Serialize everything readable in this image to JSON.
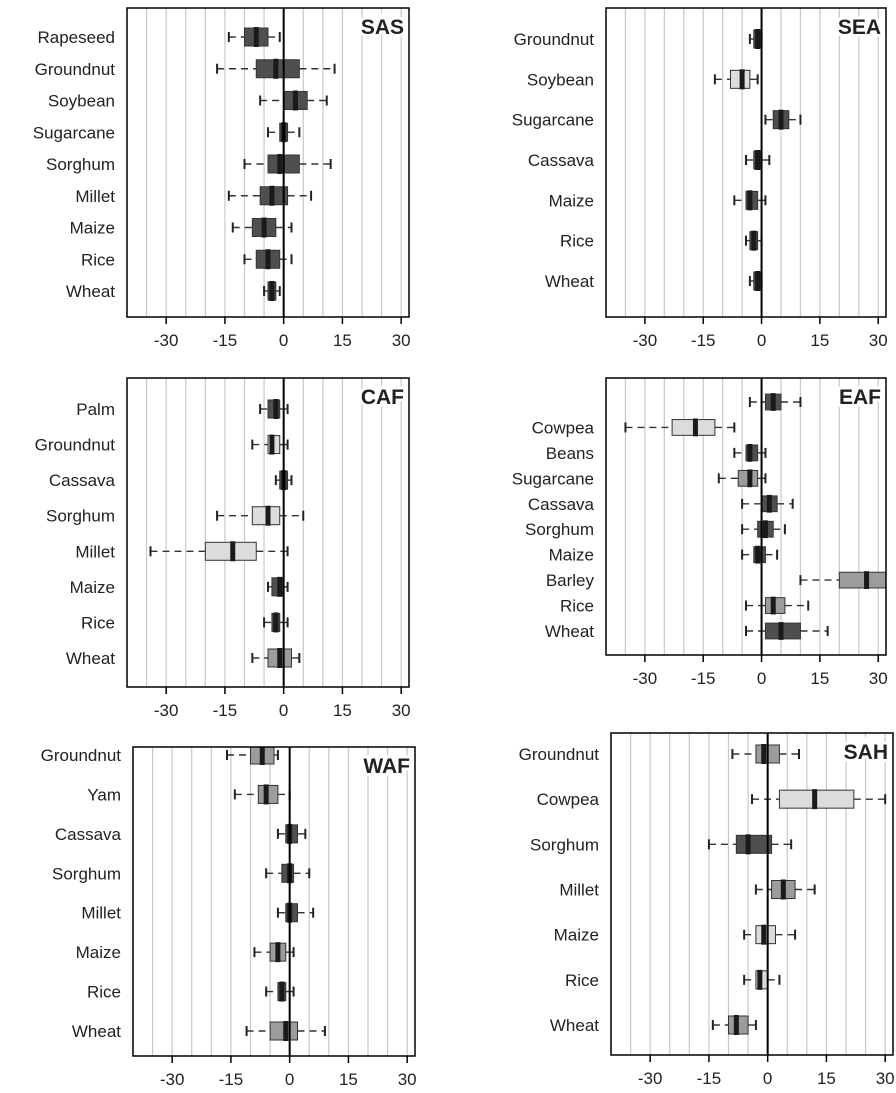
{
  "chart_data": [
    {
      "type": "boxplot",
      "region": "SAS",
      "xlim": [
        -40,
        32
      ],
      "x_ticks": [
        -30,
        -15,
        0,
        15,
        30
      ],
      "grid": "vertical",
      "title": "SAS",
      "crops": [
        {
          "name": "Rapeseed",
          "q1": -10,
          "median": -7,
          "q3": -4,
          "whisker_low": -14,
          "whisker_high": -1,
          "shade": "dark"
        },
        {
          "name": "Groundnut",
          "q1": -7,
          "median": -2,
          "q3": 4,
          "whisker_low": -17,
          "whisker_high": 13,
          "shade": "dark"
        },
        {
          "name": "Soybean",
          "q1": 0,
          "median": 3,
          "q3": 6,
          "whisker_low": -6,
          "whisker_high": 11,
          "shade": "dark"
        },
        {
          "name": "Sugarcane",
          "q1": -1,
          "median": 0,
          "q3": 1,
          "whisker_low": -4,
          "whisker_high": 4,
          "shade": "dark"
        },
        {
          "name": "Sorghum",
          "q1": -4,
          "median": -1,
          "q3": 4,
          "whisker_low": -10,
          "whisker_high": 12,
          "shade": "dark"
        },
        {
          "name": "Millet",
          "q1": -6,
          "median": -3,
          "q3": 1,
          "whisker_low": -14,
          "whisker_high": 7,
          "shade": "dark"
        },
        {
          "name": "Maize",
          "q1": -8,
          "median": -5,
          "q3": -2,
          "whisker_low": -13,
          "whisker_high": 2,
          "shade": "dark"
        },
        {
          "name": "Rice",
          "q1": -7,
          "median": -4,
          "q3": -1,
          "whisker_low": -10,
          "whisker_high": 2,
          "shade": "dark"
        },
        {
          "name": "Wheat",
          "q1": -4,
          "median": -3,
          "q3": -2,
          "whisker_low": -5,
          "whisker_high": -1,
          "shade": "dark"
        }
      ]
    },
    {
      "type": "boxplot",
      "region": "SEA",
      "xlim": [
        -40,
        32
      ],
      "x_ticks": [
        -30,
        -15,
        0,
        15,
        30
      ],
      "grid": "vertical",
      "title": "SEA",
      "crops": [
        {
          "name": "Groundnut",
          "q1": -2,
          "median": -1,
          "q3": 0,
          "whisker_low": -3,
          "whisker_high": 0,
          "shade": "dark"
        },
        {
          "name": "Soybean",
          "q1": -8,
          "median": -5,
          "q3": -3,
          "whisker_low": -12,
          "whisker_high": -1,
          "shade": "light"
        },
        {
          "name": "Sugarcane",
          "q1": 3,
          "median": 5,
          "q3": 7,
          "whisker_low": 1,
          "whisker_high": 10,
          "shade": "dark"
        },
        {
          "name": "Cassava",
          "q1": -2,
          "median": -1,
          "q3": 0,
          "whisker_low": -4,
          "whisker_high": 2,
          "shade": "dark"
        },
        {
          "name": "Maize",
          "q1": -4,
          "median": -3,
          "q3": -1,
          "whisker_low": -7,
          "whisker_high": 1,
          "shade": "dark"
        },
        {
          "name": "Rice",
          "q1": -3,
          "median": -2,
          "q3": -1,
          "whisker_low": -4,
          "whisker_high": 0,
          "shade": "dark"
        },
        {
          "name": "Wheat",
          "q1": -2,
          "median": -1,
          "q3": 0,
          "whisker_low": -3,
          "whisker_high": 0,
          "shade": "dark"
        }
      ]
    },
    {
      "type": "boxplot",
      "region": "CAF",
      "xlim": [
        -40,
        32
      ],
      "x_ticks": [
        -30,
        -15,
        0,
        15,
        30
      ],
      "grid": "vertical",
      "title": "CAF",
      "crops": [
        {
          "name": "Palm",
          "q1": -4,
          "median": -2,
          "q3": -1,
          "whisker_low": -6,
          "whisker_high": 1,
          "shade": "dark"
        },
        {
          "name": "Groundnut",
          "q1": -4,
          "median": -3,
          "q3": -1,
          "whisker_low": -8,
          "whisker_high": 1,
          "shade": "light"
        },
        {
          "name": "Cassava",
          "q1": -1,
          "median": 0,
          "q3": 1,
          "whisker_low": -2,
          "whisker_high": 2,
          "shade": "dark"
        },
        {
          "name": "Sorghum",
          "q1": -8,
          "median": -4,
          "q3": -1,
          "whisker_low": -17,
          "whisker_high": 5,
          "shade": "light"
        },
        {
          "name": "Millet",
          "q1": -20,
          "median": -13,
          "q3": -7,
          "whisker_low": -34,
          "whisker_high": 1,
          "shade": "light"
        },
        {
          "name": "Maize",
          "q1": -3,
          "median": -1,
          "q3": 0,
          "whisker_low": -4,
          "whisker_high": 1,
          "shade": "dark"
        },
        {
          "name": "Rice",
          "q1": -3,
          "median": -2,
          "q3": -1,
          "whisker_low": -5,
          "whisker_high": 1,
          "shade": "dark"
        },
        {
          "name": "Wheat",
          "q1": -4,
          "median": -1,
          "q3": 2,
          "whisker_low": -8,
          "whisker_high": 4,
          "shade": "medium"
        }
      ]
    },
    {
      "type": "boxplot",
      "region": "EAF",
      "xlim": [
        -40,
        32
      ],
      "x_ticks": [
        -30,
        -15,
        0,
        15,
        30
      ],
      "grid": "vertical",
      "title": "EAF",
      "crops": [
        {
          "name": "",
          "q1": 1,
          "median": 3,
          "q3": 5,
          "whisker_low": -3,
          "whisker_high": 10,
          "shade": "dark"
        },
        {
          "name": "Cowpea",
          "q1": -23,
          "median": -17,
          "q3": -12,
          "whisker_low": -35,
          "whisker_high": -7,
          "shade": "light"
        },
        {
          "name": "Beans",
          "q1": -4,
          "median": -3,
          "q3": -1,
          "whisker_low": -7,
          "whisker_high": 1,
          "shade": "dark"
        },
        {
          "name": "Sugarcane",
          "q1": -6,
          "median": -3,
          "q3": -1,
          "whisker_low": -11,
          "whisker_high": 1,
          "shade": "medium"
        },
        {
          "name": "Cassava",
          "q1": 0,
          "median": 2,
          "q3": 4,
          "whisker_low": -5,
          "whisker_high": 8,
          "shade": "dark"
        },
        {
          "name": "Sorghum",
          "q1": -1,
          "median": 1,
          "q3": 3,
          "whisker_low": -5,
          "whisker_high": 6,
          "shade": "dark"
        },
        {
          "name": "Maize",
          "q1": -2,
          "median": -1,
          "q3": 1,
          "whisker_low": -5,
          "whisker_high": 4,
          "shade": "dark"
        },
        {
          "name": "Barley",
          "q1": 20,
          "median": 27,
          "q3": 32,
          "whisker_low": 10,
          "whisker_high": 32,
          "shade": "medium"
        },
        {
          "name": "Rice",
          "q1": 1,
          "median": 3,
          "q3": 6,
          "whisker_low": -4,
          "whisker_high": 12,
          "shade": "medium"
        },
        {
          "name": "Wheat",
          "q1": 1,
          "median": 5,
          "q3": 10,
          "whisker_low": -4,
          "whisker_high": 17,
          "shade": "dark"
        }
      ]
    },
    {
      "type": "boxplot",
      "region": "WAF",
      "xlim": [
        -40,
        32
      ],
      "x_ticks": [
        -30,
        -15,
        0,
        15,
        30
      ],
      "grid": "vertical",
      "title": "WAF",
      "crops": [
        {
          "name": "Groundnut",
          "q1": -10,
          "median": -7,
          "q3": -4,
          "whisker_low": -16,
          "whisker_high": -3,
          "shade": "medium"
        },
        {
          "name": "Yam",
          "q1": -8,
          "median": -6,
          "q3": -3,
          "whisker_low": -14,
          "whisker_high": 0,
          "shade": "medium"
        },
        {
          "name": "Cassava",
          "q1": -1,
          "median": 0,
          "q3": 2,
          "whisker_low": -3,
          "whisker_high": 4,
          "shade": "dark"
        },
        {
          "name": "Sorghum",
          "q1": -2,
          "median": 0,
          "q3": 1,
          "whisker_low": -6,
          "whisker_high": 5,
          "shade": "dark"
        },
        {
          "name": "Millet",
          "q1": -1,
          "median": 0,
          "q3": 2,
          "whisker_low": -3,
          "whisker_high": 6,
          "shade": "dark"
        },
        {
          "name": "Maize",
          "q1": -5,
          "median": -3,
          "q3": -1,
          "whisker_low": -9,
          "whisker_high": 1,
          "shade": "medium"
        },
        {
          "name": "Rice",
          "q1": -3,
          "median": -2,
          "q3": -1,
          "whisker_low": -6,
          "whisker_high": 1,
          "shade": "dark"
        },
        {
          "name": "Wheat",
          "q1": -5,
          "median": -1,
          "q3": 2,
          "whisker_low": -11,
          "whisker_high": 9,
          "shade": "medium"
        }
      ]
    },
    {
      "type": "boxplot",
      "region": "SAH",
      "xlim": [
        -40,
        32
      ],
      "x_ticks": [
        -30,
        -15,
        0,
        15,
        30
      ],
      "grid": "vertical",
      "title": "SAH",
      "crops": [
        {
          "name": "Groundnut",
          "q1": -3,
          "median": -1,
          "q3": 3,
          "whisker_low": -9,
          "whisker_high": 8,
          "shade": "medium"
        },
        {
          "name": "Cowpea",
          "q1": 3,
          "median": 12,
          "q3": 22,
          "whisker_low": -4,
          "whisker_high": 30,
          "shade": "light"
        },
        {
          "name": "Sorghum",
          "q1": -8,
          "median": -5,
          "q3": 1,
          "whisker_low": -15,
          "whisker_high": 6,
          "shade": "dark"
        },
        {
          "name": "Millet",
          "q1": 1,
          "median": 4,
          "q3": 7,
          "whisker_low": -3,
          "whisker_high": 12,
          "shade": "medium"
        },
        {
          "name": "Maize",
          "q1": -3,
          "median": -1,
          "q3": 2,
          "whisker_low": -6,
          "whisker_high": 7,
          "shade": "light"
        },
        {
          "name": "Rice",
          "q1": -3,
          "median": -2,
          "q3": 0,
          "whisker_low": -6,
          "whisker_high": 3,
          "shade": "light"
        },
        {
          "name": "Wheat",
          "q1": -10,
          "median": -8,
          "q3": -5,
          "whisker_low": -14,
          "whisker_high": -3,
          "shade": "medium"
        }
      ]
    }
  ],
  "colors": {
    "dark": "#4f4f4f",
    "medium": "#9c9c9c",
    "light": "#dcdcdc",
    "grid": "#c8c8c8",
    "axis": "#000000",
    "text": "#222222"
  }
}
